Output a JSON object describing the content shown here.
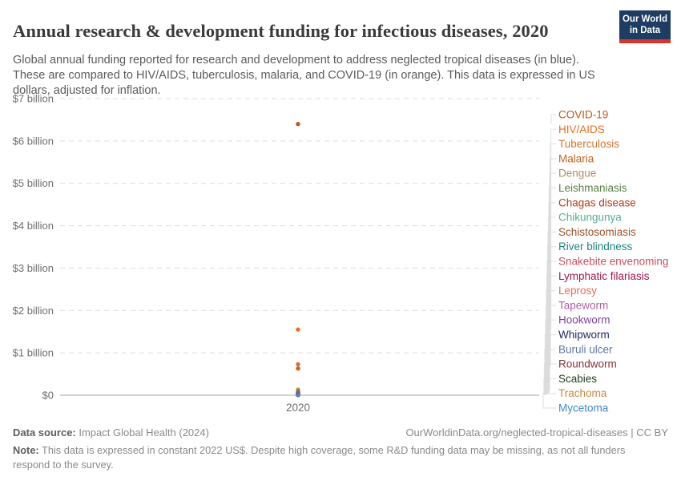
{
  "header": {
    "title": "Annual research & development funding for infectious diseases, 2020",
    "subtitle": "Global annual funding reported for research and development to address neglected tropical diseases (in blue). These are compared to HIV/AIDS, tuberculosis, malaria, and COVID-19 (in orange). This data is expressed in US dollars, adjusted for inflation.",
    "logo": {
      "line1": "Our World",
      "line2": "in Data",
      "bg_color": "#1d3d63",
      "accent_color": "#d8352e"
    }
  },
  "chart_data": {
    "type": "scatter",
    "title": "Annual research & development funding for infectious diseases, 2020",
    "x_tick": "2020",
    "unit": "US$ billion, constant 2022",
    "ylim": [
      0,
      7
    ],
    "y_ticks": [
      "$0",
      "$1 billion",
      "$2 billion",
      "$3 billion",
      "$4 billion",
      "$5 billion",
      "$6 billion",
      "$7 billion"
    ],
    "grid": true,
    "legend_position": "right",
    "ntd_color_note": "neglected tropical diseases in blue/varied, comparators in orange",
    "series": [
      {
        "name": "COVID-19",
        "value_billion": 6.4,
        "color": "#bb5a1d"
      },
      {
        "name": "HIV/AIDS",
        "value_billion": 1.55,
        "color": "#e9701e"
      },
      {
        "name": "Tuberculosis",
        "value_billion": 0.73,
        "color": "#d2752f"
      },
      {
        "name": "Malaria",
        "value_billion": 0.63,
        "color": "#c6641f"
      },
      {
        "name": "Dengue",
        "value_billion": 0.13,
        "color": "#b08c5f"
      },
      {
        "name": "Leishmaniasis",
        "value_billion": 0.08,
        "color": "#578145"
      },
      {
        "name": "Chagas disease",
        "value_billion": 0.05,
        "color": "#b33b18"
      },
      {
        "name": "Chikungunya",
        "value_billion": 0.045,
        "color": "#58ac8c"
      },
      {
        "name": "Schistosomiasis",
        "value_billion": 0.04,
        "color": "#9a5129"
      },
      {
        "name": "River blindness",
        "value_billion": 0.035,
        "color": "#1f8580"
      },
      {
        "name": "Snakebite envenoming",
        "value_billion": 0.03,
        "color": "#c85062"
      },
      {
        "name": "Lymphatic filariasis",
        "value_billion": 0.025,
        "color": "#a0174e"
      },
      {
        "name": "Leprosy",
        "value_billion": 0.02,
        "color": "#e56e5a"
      },
      {
        "name": "Tapeworm",
        "value_billion": 0.016,
        "color": "#ac62a6"
      },
      {
        "name": "Hookworm",
        "value_billion": 0.013,
        "color": "#7d42a5"
      },
      {
        "name": "Whipworm",
        "value_billion": 0.01,
        "color": "#232a60"
      },
      {
        "name": "Buruli ulcer",
        "value_billion": 0.008,
        "color": "#5c79a7"
      },
      {
        "name": "Roundworm",
        "value_billion": 0.006,
        "color": "#883039"
      },
      {
        "name": "Scabies",
        "value_billion": 0.005,
        "color": "#234318"
      },
      {
        "name": "Trachoma",
        "value_billion": 0.004,
        "color": "#c8893f"
      },
      {
        "name": "Mycetoma",
        "value_billion": 0.002,
        "color": "#4288c9"
      }
    ]
  },
  "footer": {
    "source_label": "Data source:",
    "source_value": " Impact Global Health (2024)",
    "link_text": "OurWorldinData.org/neglected-tropical-diseases | CC BY",
    "note_label": "Note:",
    "note_value": " This data is expressed in constant 2022 US$. Despite high coverage, some R&D funding data may be missing, as not all funders respond to the survey."
  }
}
